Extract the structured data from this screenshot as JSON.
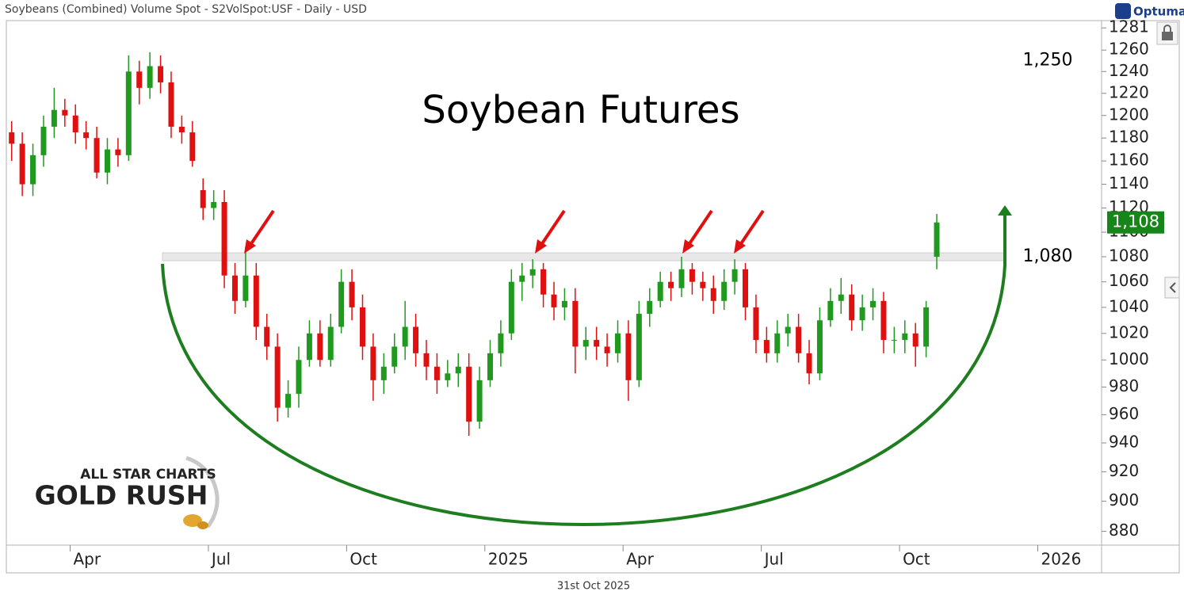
{
  "chart_data": {
    "type": "candlestick",
    "header": "Soybeans (Combined) Volume Spot - S2VolSpot:USF - Daily - USD",
    "title": "Soybean Futures",
    "logo": "Optuma",
    "date_label": "31st Oct 2025",
    "watermark": [
      "ALL STAR CHARTS",
      "GOLD RUSH"
    ],
    "log_scale": true,
    "colors": {
      "up": "#1f9a1f",
      "down": "#e01010"
    },
    "ylim": [
      871,
      1288
    ],
    "yticks": [
      880,
      900,
      920,
      940,
      960,
      980,
      1000,
      1020,
      1040,
      1060,
      1080,
      1100,
      1120,
      1140,
      1160,
      1180,
      1200,
      1220,
      1240,
      1260,
      1281
    ],
    "annotations": [
      {
        "value": 1250,
        "label": "1,250"
      },
      {
        "value": 1080,
        "label": "1,080"
      }
    ],
    "last_price": {
      "value": 1108,
      "label": "1,108"
    },
    "categories": [
      null,
      null,
      null,
      null,
      null,
      null,
      "Apr",
      null,
      null,
      null,
      null,
      null,
      null,
      null,
      null,
      null,
      null,
      null,
      null,
      "Jul",
      null,
      null,
      null,
      null,
      null,
      null,
      null,
      null,
      null,
      null,
      null,
      null,
      "Oct",
      null,
      null,
      null,
      null,
      null,
      null,
      null,
      null,
      null,
      null,
      null,
      null,
      "2025",
      null,
      null,
      null,
      null,
      null,
      null,
      null,
      null,
      null,
      null,
      null,
      null,
      "Apr",
      null,
      null,
      null,
      null,
      null,
      null,
      null,
      null,
      null,
      null,
      null,
      null,
      "Jul",
      null,
      null,
      null,
      null,
      null,
      null,
      null,
      null,
      null,
      null,
      null,
      null,
      "Oct",
      null,
      null,
      null,
      null,
      null,
      null,
      null,
      null,
      null,
      null,
      null,
      null,
      "2026",
      null,
      null,
      null,
      null,
      null
    ],
    "open": [
      1185,
      1175,
      1140,
      1165,
      1190,
      1205,
      1200,
      1185,
      1180,
      1150,
      1170,
      1165,
      1240,
      1225,
      1245,
      1230,
      1190,
      1185,
      1135,
      1120,
      1125,
      1065,
      1045,
      1065,
      1025,
      1010,
      965,
      975,
      1000,
      1020,
      1000,
      1025,
      1060,
      1040,
      1010,
      985,
      995,
      1010,
      1025,
      1005,
      995,
      985,
      990,
      995,
      955,
      985,
      1005,
      1020,
      1060,
      1065,
      1070,
      1050,
      1040,
      1045,
      1010,
      1015,
      1010,
      1005,
      1020,
      985,
      1035,
      1045,
      1060,
      1055,
      1070,
      1060,
      1055,
      1045,
      1060,
      1070,
      1040,
      1015,
      1005,
      1020,
      1025,
      1005,
      990,
      1030,
      1045,
      1050,
      1030,
      1040,
      1045,
      1015,
      1015,
      1020,
      1010,
      1080,
      null,
      null,
      null,
      null,
      null,
      null,
      null,
      null,
      null,
      null,
      null,
      null,
      null,
      null,
      null
    ],
    "high": [
      1195,
      1185,
      1175,
      1200,
      1225,
      1215,
      1210,
      1195,
      1190,
      1180,
      1180,
      1255,
      1250,
      1258,
      1255,
      1240,
      1200,
      1195,
      1145,
      1135,
      1135,
      1075,
      1088,
      1075,
      1035,
      1020,
      985,
      1010,
      1030,
      1030,
      1035,
      1070,
      1070,
      1050,
      1020,
      1005,
      1020,
      1045,
      1035,
      1015,
      1005,
      1000,
      1005,
      1005,
      995,
      1015,
      1030,
      1070,
      1075,
      1078,
      1075,
      1060,
      1055,
      1055,
      1025,
      1025,
      1020,
      1030,
      1030,
      1045,
      1055,
      1068,
      1068,
      1080,
      1075,
      1068,
      1065,
      1070,
      1078,
      1075,
      1050,
      1025,
      1030,
      1035,
      1035,
      1015,
      1040,
      1055,
      1063,
      1058,
      1050,
      1055,
      1052,
      1025,
      1030,
      1028,
      1045,
      1115,
      null,
      null,
      null,
      null,
      null,
      null,
      null,
      null,
      null,
      null,
      null,
      null,
      null,
      null,
      null
    ],
    "low": [
      1160,
      1130,
      1130,
      1155,
      1180,
      1190,
      1175,
      1170,
      1145,
      1140,
      1155,
      1160,
      1210,
      1215,
      1220,
      1180,
      1175,
      1155,
      1110,
      1110,
      1055,
      1035,
      1040,
      1015,
      1000,
      955,
      958,
      965,
      995,
      995,
      995,
      1020,
      1030,
      1000,
      970,
      975,
      990,
      1000,
      995,
      985,
      975,
      980,
      980,
      945,
      950,
      980,
      995,
      1015,
      1045,
      1055,
      1040,
      1030,
      1030,
      990,
      1000,
      1000,
      995,
      998,
      970,
      980,
      1025,
      1040,
      1045,
      1048,
      1050,
      1045,
      1035,
      1038,
      1050,
      1030,
      1005,
      998,
      998,
      1010,
      998,
      982,
      985,
      1025,
      1035,
      1022,
      1022,
      1030,
      1005,
      1005,
      1005,
      995,
      1002,
      1070,
      null,
      null,
      null,
      null,
      null,
      null,
      null,
      null,
      null,
      null,
      null,
      null,
      null,
      null,
      null
    ],
    "close": [
      1175,
      1140,
      1165,
      1190,
      1205,
      1200,
      1185,
      1180,
      1150,
      1170,
      1165,
      1240,
      1225,
      1245,
      1230,
      1190,
      1185,
      1160,
      1120,
      1125,
      1065,
      1045,
      1065,
      1025,
      1010,
      965,
      975,
      1000,
      1020,
      1000,
      1025,
      1060,
      1040,
      1010,
      985,
      995,
      1010,
      1025,
      1005,
      995,
      985,
      990,
      995,
      955,
      985,
      1005,
      1020,
      1060,
      1065,
      1070,
      1050,
      1040,
      1045,
      1010,
      1015,
      1010,
      1005,
      1020,
      985,
      1035,
      1045,
      1060,
      1055,
      1070,
      1060,
      1055,
      1045,
      1060,
      1070,
      1040,
      1015,
      1005,
      1020,
      1025,
      1005,
      990,
      1030,
      1045,
      1050,
      1030,
      1040,
      1045,
      1015,
      1015,
      1020,
      1010,
      1040,
      1108,
      null,
      null,
      null,
      null,
      null,
      null,
      null,
      null,
      null,
      null,
      null,
      null,
      null,
      null,
      null
    ]
  }
}
